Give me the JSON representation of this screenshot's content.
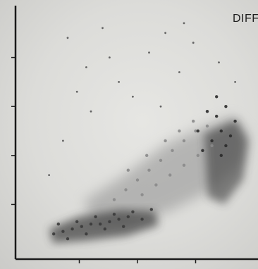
{
  "chart_data": {
    "type": "scatter",
    "title": "DIFF",
    "xlabel": "",
    "ylabel": "",
    "xlim": [
      0,
      100
    ],
    "ylim": [
      0,
      100
    ],
    "grid": false,
    "legend": "none",
    "series": [
      {
        "cluster": "dense-lower-band",
        "color": "#3a3a3a",
        "points": [
          [
            14,
            8
          ],
          [
            18,
            9
          ],
          [
            22,
            10
          ],
          [
            26,
            11
          ],
          [
            30,
            12
          ],
          [
            34,
            12
          ],
          [
            38,
            13
          ],
          [
            42,
            14
          ],
          [
            46,
            15
          ],
          [
            20,
            6
          ],
          [
            28,
            8
          ],
          [
            36,
            10
          ],
          [
            44,
            11
          ],
          [
            52,
            14
          ],
          [
            16,
            12
          ],
          [
            24,
            13
          ],
          [
            32,
            15
          ],
          [
            40,
            16
          ],
          [
            48,
            17
          ],
          [
            56,
            18
          ]
        ]
      },
      {
        "cluster": "diagonal-gray-population",
        "color": "#8a8a8a",
        "points": [
          [
            40,
            22
          ],
          [
            45,
            26
          ],
          [
            50,
            30
          ],
          [
            55,
            34
          ],
          [
            60,
            38
          ],
          [
            65,
            42
          ],
          [
            70,
            46
          ],
          [
            75,
            50
          ],
          [
            80,
            52
          ],
          [
            52,
            24
          ],
          [
            58,
            28
          ],
          [
            64,
            32
          ],
          [
            70,
            36
          ],
          [
            76,
            40
          ],
          [
            82,
            44
          ],
          [
            46,
            34
          ],
          [
            54,
            40
          ],
          [
            62,
            46
          ],
          [
            68,
            50
          ],
          [
            74,
            54
          ]
        ]
      },
      {
        "cluster": "dark-right-cluster",
        "color": "#2a2a2a",
        "points": [
          [
            78,
            42
          ],
          [
            82,
            46
          ],
          [
            86,
            50
          ],
          [
            84,
            56
          ],
          [
            88,
            60
          ],
          [
            80,
            58
          ],
          [
            90,
            48
          ],
          [
            86,
            40
          ],
          [
            92,
            54
          ],
          [
            76,
            50
          ],
          [
            84,
            64
          ],
          [
            88,
            44
          ]
        ]
      },
      {
        "cluster": "sparse-scatter",
        "color": "#555555",
        "points": [
          [
            20,
            88
          ],
          [
            28,
            76
          ],
          [
            35,
            92
          ],
          [
            42,
            70
          ],
          [
            55,
            82
          ],
          [
            62,
            90
          ],
          [
            68,
            74
          ],
          [
            74,
            86
          ],
          [
            48,
            64
          ],
          [
            30,
            58
          ],
          [
            18,
            46
          ],
          [
            12,
            32
          ],
          [
            60,
            60
          ],
          [
            85,
            78
          ],
          [
            92,
            70
          ],
          [
            24,
            66
          ],
          [
            38,
            80
          ],
          [
            70,
            94
          ]
        ]
      }
    ]
  }
}
